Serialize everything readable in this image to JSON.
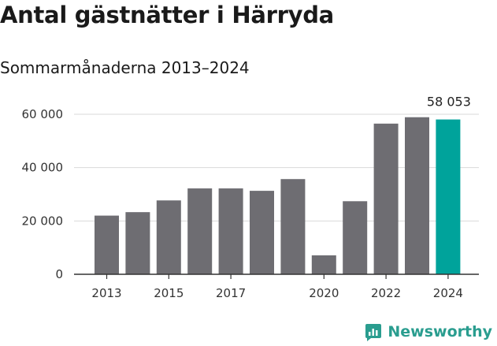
{
  "header": {
    "title": "Antal gästnätter i Härryda",
    "subtitle": "Sommarmånaderna 2013–2024"
  },
  "brand": {
    "name": "Newsworthy",
    "icon": "newsworthy-logo-icon",
    "color": "#2a9d8f"
  },
  "chart_data": {
    "type": "bar",
    "title": "Antal gästnätter i Härryda",
    "subtitle": "Sommarmånaderna 2013–2024",
    "xlabel": "",
    "ylabel": "",
    "categories": [
      "2013",
      "2014",
      "2015",
      "2016",
      "2017",
      "2018",
      "2019",
      "2020",
      "2021",
      "2022",
      "2023",
      "2024"
    ],
    "values": [
      22000,
      23300,
      27700,
      32200,
      32200,
      31300,
      35700,
      7100,
      27400,
      56500,
      58900,
      58053
    ],
    "x_tick_labels": [
      "2013",
      "2015",
      "2017",
      "2020",
      "2022",
      "2024"
    ],
    "y_ticks": [
      0,
      20000,
      40000,
      60000
    ],
    "y_tick_labels": [
      "0",
      "20 000",
      "40 000",
      "60 000"
    ],
    "ylim": [
      0,
      60000
    ],
    "grid": true,
    "bar_color": "#6e6d72",
    "highlight_color": "#00a39b",
    "highlight_category": "2024",
    "data_labels": [
      {
        "category": "2024",
        "text": "58 053"
      }
    ]
  }
}
